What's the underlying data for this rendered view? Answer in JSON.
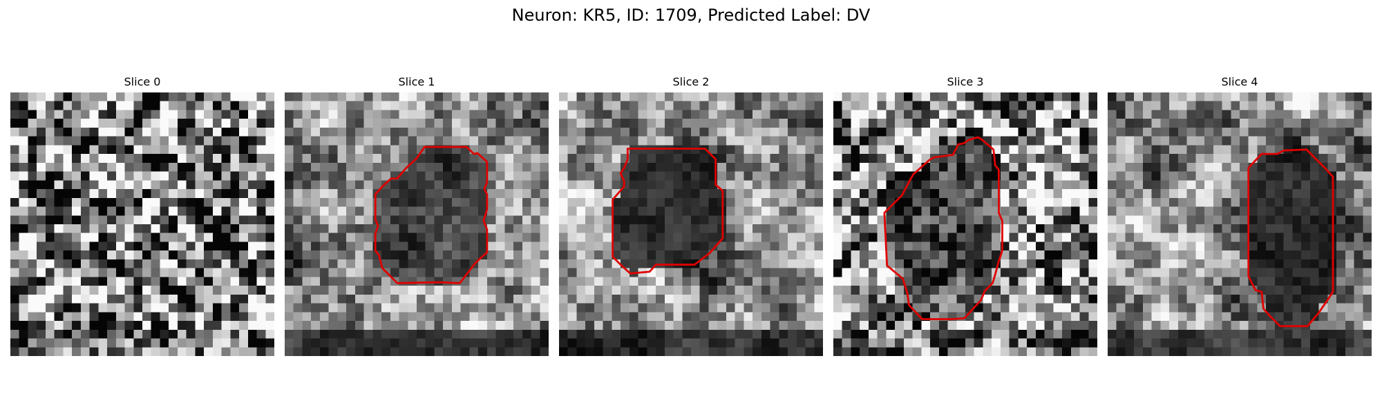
{
  "title": "Neuron: KR5, ID: 1709, Predicted Label: DV",
  "contour_color": "#e00000",
  "grid_size": 30,
  "slices": [
    {
      "label": "Slice 0",
      "seed": 11,
      "style": "noisy",
      "has_contour": false
    },
    {
      "label": "Slice 1",
      "seed": 23,
      "style": "smooth",
      "has_contour": true
    },
    {
      "label": "Slice 2",
      "seed": 37,
      "style": "smooth-dark",
      "has_contour": true
    },
    {
      "label": "Slice 3",
      "seed": 41,
      "style": "noisy",
      "has_contour": true
    },
    {
      "label": "Slice 4",
      "seed": 53,
      "style": "smooth-dark",
      "has_contour": true
    }
  ]
}
